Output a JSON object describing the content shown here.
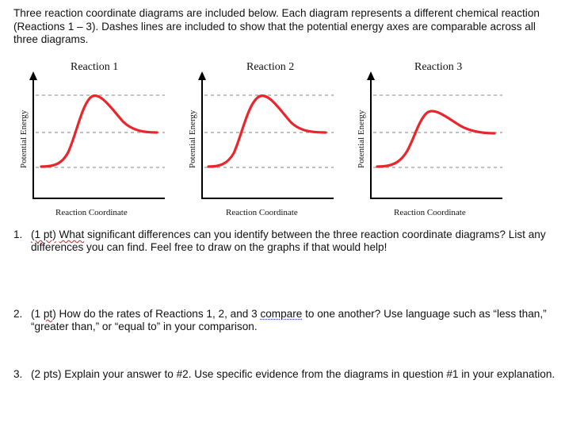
{
  "intro": "Three reaction coordinate diagrams are included below. Each diagram represents a different chemical reaction (Reactions 1 – 3). Dashes lines are included to show that the potential energy axes are comparable across all three diagrams.",
  "diagrams": [
    {
      "title": "Reaction 1",
      "xlabel": "Reaction Coordinate",
      "ylabel": "Potential Energy"
    },
    {
      "title": "Reaction 2",
      "xlabel": "Reaction Coordinate",
      "ylabel": "Potential Energy"
    },
    {
      "title": "Reaction 3",
      "xlabel": "Reaction Coordinate",
      "ylabel": "Potential Energy"
    }
  ],
  "colors": {
    "curve": "#e8262b",
    "axis": "#000000",
    "dash": "#9a9a9a"
  },
  "questions": [
    {
      "num": "1.",
      "pts": "(1 pt)",
      "word": "What",
      "text": " significant differences can you identify between the three reaction coordinate diagrams? List any differences you can find.  Feel free to draw on the graphs if that would help!"
    },
    {
      "num": "2.",
      "pts_pre": "(1 ",
      "pts_word": "pt",
      "pts_post": ") How do the rates of Reactions 1, 2, and 3 ",
      "keyword": "compare",
      "text": " to one another?  Use language such as “less than,” “greater than,” or “equal to” in your comparison."
    },
    {
      "num": "3.",
      "text": "(2 pts) Explain your answer to #2.  Use specific evidence from the diagrams in question #1 in your explanation."
    }
  ]
}
